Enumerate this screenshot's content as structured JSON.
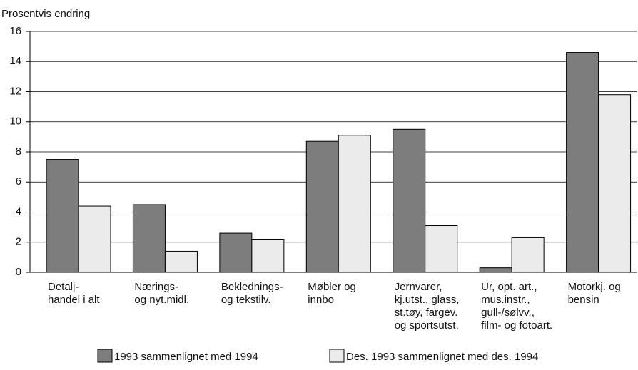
{
  "chart_data": {
    "type": "bar",
    "y_label": "Prosentvis endring",
    "categories": [
      [
        "Detalj-",
        "handel i alt"
      ],
      [
        "Nærings-",
        "og nyt.midl."
      ],
      [
        "Beklednings-",
        "og tekstilv."
      ],
      [
        "Møbler og",
        "innbo"
      ],
      [
        "Jernvarer,",
        "kj.utst., glass,",
        "st.tøy, fargev.",
        "og sportsutst."
      ],
      [
        "Ur, opt. art.,",
        "mus.instr.,",
        "gull-/sølvv.,",
        "film- og fotoart."
      ],
      [
        "Motorkj. og",
        "bensin"
      ]
    ],
    "series": [
      {
        "name": "1993 sammenlignet med 1994",
        "color": "#7d7d7d",
        "values": [
          7.5,
          4.5,
          2.6,
          8.7,
          9.5,
          0.3,
          14.6
        ]
      },
      {
        "name": "Des. 1993 sammenlignet med des. 1994",
        "color": "#ebebeb",
        "values": [
          4.4,
          1.4,
          2.2,
          9.1,
          3.1,
          2.3,
          11.8
        ]
      }
    ],
    "ylim": [
      0,
      16
    ],
    "yticks": [
      0,
      2,
      4,
      6,
      8,
      10,
      12,
      14,
      16
    ],
    "grid": true
  }
}
